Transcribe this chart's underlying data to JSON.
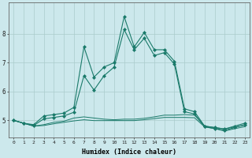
{
  "xlabel": "Humidex (Indice chaleur)",
  "x": [
    0,
    1,
    2,
    3,
    4,
    5,
    6,
    7,
    8,
    9,
    10,
    11,
    12,
    13,
    14,
    15,
    16,
    17,
    18,
    19,
    20,
    21,
    22,
    23
  ],
  "line1": [
    5.0,
    4.9,
    4.85,
    5.15,
    5.2,
    5.25,
    5.45,
    7.55,
    6.5,
    6.85,
    7.0,
    8.6,
    7.55,
    8.05,
    7.45,
    7.45,
    7.05,
    5.4,
    5.3,
    4.8,
    4.75,
    4.7,
    4.8,
    4.9
  ],
  "line2": [
    5.0,
    4.9,
    4.82,
    5.05,
    5.1,
    5.15,
    5.28,
    6.55,
    6.05,
    6.55,
    6.85,
    8.15,
    7.45,
    7.85,
    7.25,
    7.35,
    6.95,
    5.3,
    5.22,
    4.78,
    4.72,
    4.65,
    4.75,
    4.85
  ],
  "line3": [
    5.0,
    4.9,
    4.8,
    4.85,
    4.93,
    4.97,
    5.08,
    5.12,
    5.08,
    5.04,
    5.02,
    5.04,
    5.04,
    5.07,
    5.12,
    5.18,
    5.18,
    5.2,
    5.18,
    4.8,
    4.75,
    4.7,
    4.77,
    4.83
  ],
  "line4": [
    5.0,
    4.9,
    4.8,
    4.82,
    4.88,
    4.93,
    4.98,
    5.02,
    4.99,
    4.99,
    4.99,
    4.99,
    4.99,
    5.02,
    5.06,
    5.1,
    5.1,
    5.1,
    5.09,
    4.77,
    4.71,
    4.63,
    4.71,
    4.78
  ],
  "line_color": "#1a7a6a",
  "bg_color": "#cce8ec",
  "grid_color": "#aacccc",
  "ylim": [
    4.4,
    9.1
  ],
  "yticks": [
    5,
    6,
    7,
    8
  ],
  "xticks": [
    0,
    1,
    2,
    3,
    4,
    5,
    6,
    7,
    8,
    9,
    10,
    11,
    12,
    13,
    14,
    15,
    16,
    17,
    18,
    19,
    20,
    21,
    22,
    23
  ]
}
